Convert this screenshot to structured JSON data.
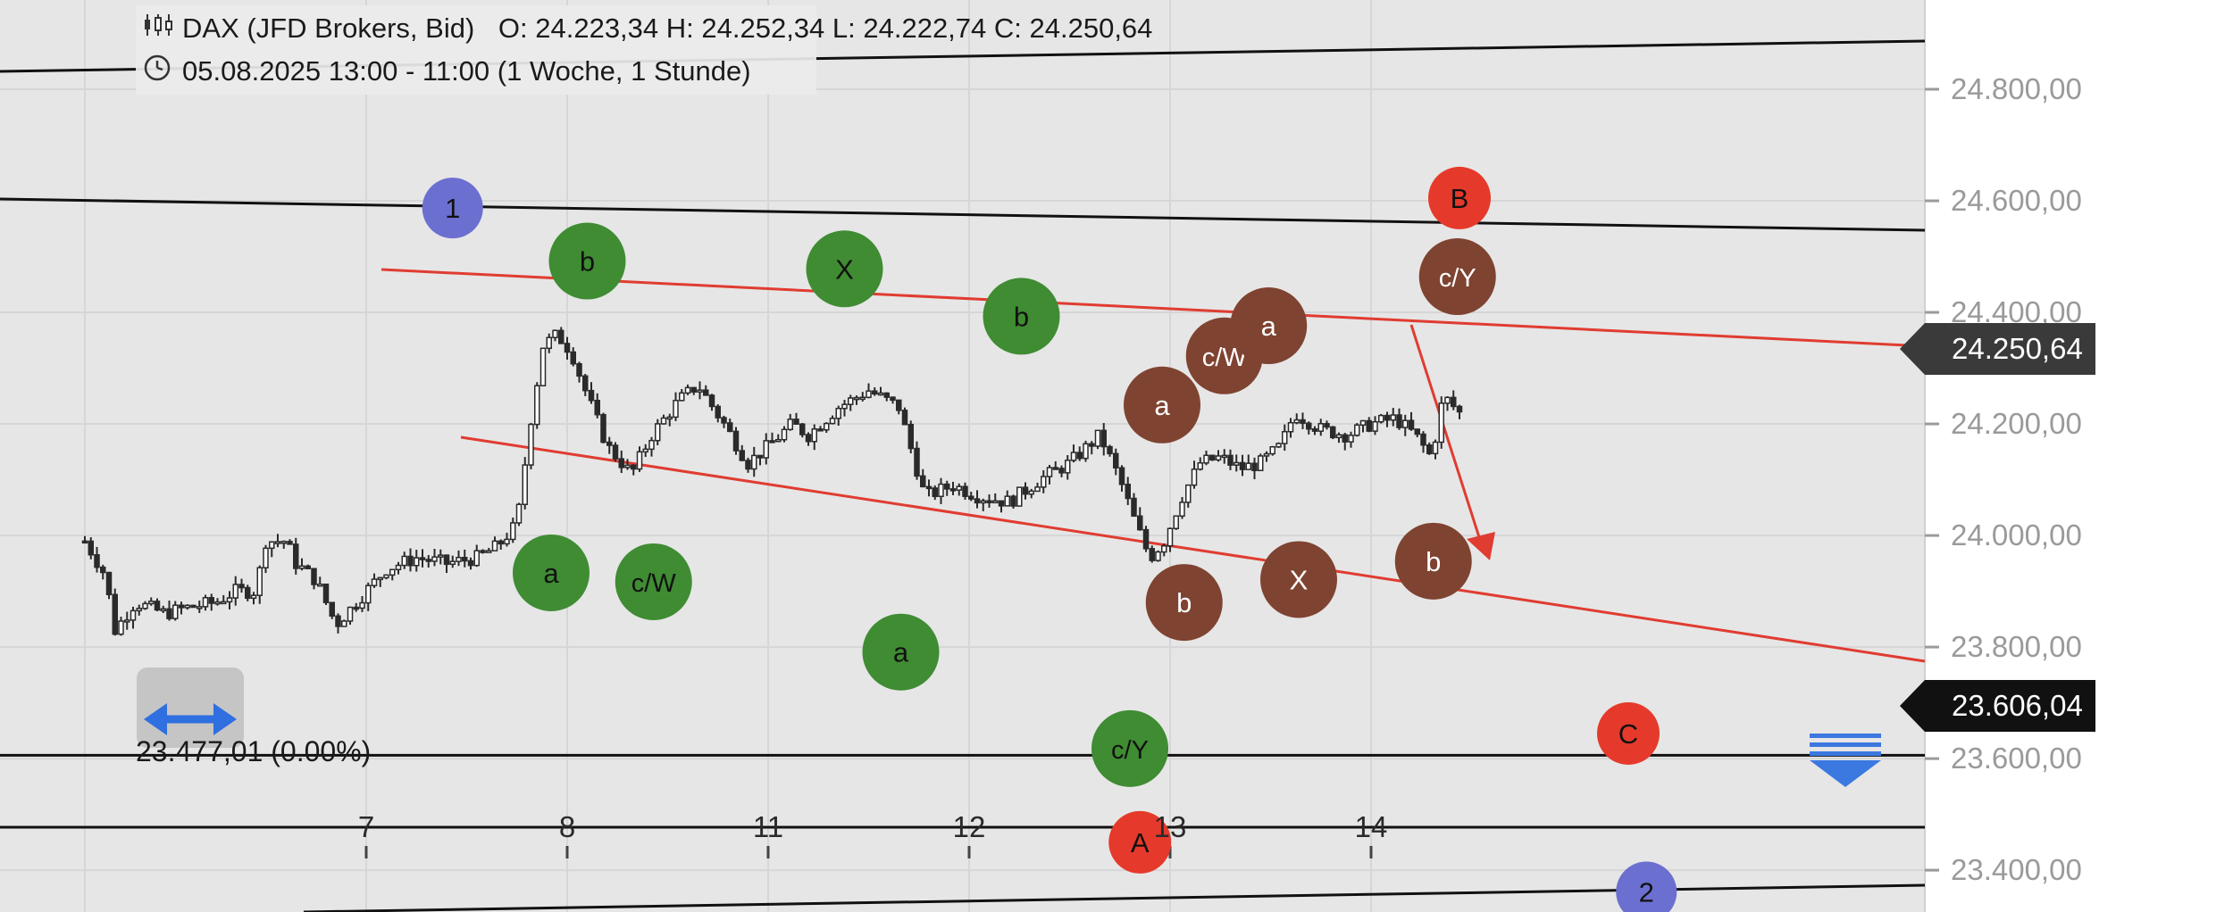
{
  "header": {
    "instrument": "DAX (JFD Brokers, Bid)",
    "ohlc": "O: 24.223,34  H: 24.252,34  L: 24.222,74  C: 24.250,64",
    "period": "05.08.2025 13:00 - 11:00   (1 Woche, 1 Stunde)"
  },
  "price_tags": {
    "last": "24.250,64",
    "line": "23.606,04"
  },
  "measure_text": "23.477,01 (0.00%)",
  "colors": {
    "green": "#3f8c33",
    "brown": "#7f4331",
    "red": "#e53a2b",
    "blue": "#6b6fd0",
    "channel": "#e03c31",
    "plot_bg": "#e6e6e6"
  },
  "chart_data": {
    "type": "candlestick",
    "y_ticks": [
      "24.800,00",
      "24.600,00",
      "24.400,00",
      "24.200,00",
      "24.000,00",
      "23.800,00",
      "23.600,00",
      "23.400,00"
    ],
    "ylim": [
      23325,
      24960
    ],
    "x_ticks": [
      {
        "label": "7",
        "x": 6.0
      },
      {
        "label": "8",
        "x": 7.0
      },
      {
        "label": "11",
        "x": 8.0
      },
      {
        "label": "12",
        "x": 9.0
      },
      {
        "label": "13",
        "x": 10.0
      },
      {
        "label": "14",
        "x": 11.0
      }
    ],
    "xlim": [
      4.6,
      14.1
    ],
    "price_path": [
      [
        4.6,
        23990
      ],
      [
        4.7,
        23930
      ],
      [
        4.75,
        23830
      ],
      [
        4.85,
        23880
      ],
      [
        5.0,
        23860
      ],
      [
        5.1,
        23870
      ],
      [
        5.25,
        23880
      ],
      [
        5.35,
        23900
      ],
      [
        5.45,
        23900
      ],
      [
        5.5,
        23990
      ],
      [
        5.6,
        23990
      ],
      [
        5.65,
        23950
      ],
      [
        5.75,
        23920
      ],
      [
        5.85,
        23840
      ],
      [
        5.95,
        23880
      ],
      [
        6.1,
        23940
      ],
      [
        6.25,
        23960
      ],
      [
        6.4,
        23950
      ],
      [
        6.55,
        23960
      ],
      [
        6.65,
        23980
      ],
      [
        6.75,
        24020
      ],
      [
        6.82,
        24210
      ],
      [
        6.88,
        24340
      ],
      [
        6.95,
        24360
      ],
      [
        7.02,
        24330
      ],
      [
        7.1,
        24250
      ],
      [
        7.2,
        24160
      ],
      [
        7.32,
        24110
      ],
      [
        7.42,
        24180
      ],
      [
        7.55,
        24240
      ],
      [
        7.65,
        24270
      ],
      [
        7.78,
        24200
      ],
      [
        7.9,
        24130
      ],
      [
        8.0,
        24160
      ],
      [
        8.12,
        24200
      ],
      [
        8.2,
        24180
      ],
      [
        8.35,
        24230
      ],
      [
        8.5,
        24260
      ],
      [
        8.65,
        24230
      ],
      [
        8.78,
        24070
      ],
      [
        8.92,
        24090
      ],
      [
        9.05,
        24070
      ],
      [
        9.2,
        24060
      ],
      [
        9.35,
        24100
      ],
      [
        9.5,
        24130
      ],
      [
        9.65,
        24180
      ],
      [
        9.75,
        24100
      ],
      [
        9.83,
        24020
      ],
      [
        9.9,
        23960
      ],
      [
        9.97,
        23990
      ],
      [
        10.06,
        24070
      ],
      [
        10.15,
        24130
      ],
      [
        10.25,
        24140
      ],
      [
        10.35,
        24120
      ],
      [
        10.45,
        24130
      ],
      [
        10.55,
        24160
      ],
      [
        10.62,
        24220
      ],
      [
        10.75,
        24190
      ],
      [
        10.88,
        24180
      ],
      [
        11.0,
        24200
      ],
      [
        11.12,
        24210
      ],
      [
        11.22,
        24180
      ],
      [
        11.3,
        24140
      ],
      [
        11.36,
        24250
      ],
      [
        11.44,
        24220
      ]
    ],
    "last_price": 24250.64,
    "horizontal_lines": [
      23606.04,
      23477.01
    ],
    "annotations": [
      {
        "label": "1",
        "color": "blue",
        "x": 6.43,
        "y": 24587
      },
      {
        "label": "b",
        "color": "green",
        "x": 7.1,
        "y": 24492
      },
      {
        "label": "X",
        "color": "green",
        "x": 8.38,
        "y": 24478
      },
      {
        "label": "b",
        "color": "green",
        "x": 9.26,
        "y": 24393
      },
      {
        "label": "a",
        "color": "green",
        "x": 6.92,
        "y": 23933
      },
      {
        "label": "c/W",
        "color": "green",
        "x": 7.43,
        "y": 23917
      },
      {
        "label": "a",
        "color": "green",
        "x": 8.66,
        "y": 23791
      },
      {
        "label": "c/Y",
        "color": "green",
        "x": 9.8,
        "y": 23618
      },
      {
        "label": "a",
        "color": "brown",
        "x": 9.96,
        "y": 24234
      },
      {
        "label": "c/W",
        "color": "brown",
        "x": 10.27,
        "y": 24322
      },
      {
        "label": "a",
        "color": "brown",
        "x": 10.49,
        "y": 24376
      },
      {
        "label": "c/Y",
        "color": "brown",
        "x": 11.43,
        "y": 24464
      },
      {
        "label": "b",
        "color": "brown",
        "x": 10.07,
        "y": 23880
      },
      {
        "label": "X",
        "color": "brown",
        "x": 10.64,
        "y": 23921
      },
      {
        "label": "b",
        "color": "brown",
        "x": 11.31,
        "y": 23954
      },
      {
        "label": "B",
        "color": "red",
        "x": 11.44,
        "y": 24605
      },
      {
        "label": "A",
        "color": "red",
        "x": 9.85,
        "y": 23450
      },
      {
        "label": "C",
        "color": "red",
        "x": 12.28,
        "y": 23645
      },
      {
        "label": "2",
        "color": "blue",
        "x": 12.37,
        "y": 23361
      }
    ]
  }
}
